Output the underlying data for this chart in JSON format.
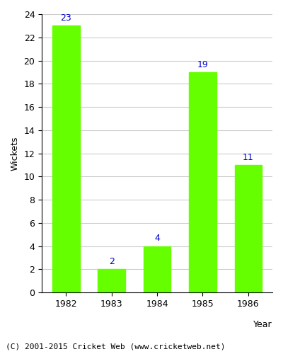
{
  "years": [
    "1982",
    "1983",
    "1984",
    "1985",
    "1986"
  ],
  "values": [
    23,
    2,
    4,
    19,
    11
  ],
  "bar_color": "#66ff00",
  "bar_edge_color": "#66ff00",
  "label_color": "#0000cc",
  "xlabel": "Year",
  "ylabel": "Wickets",
  "ylim": [
    0,
    24
  ],
  "yticks": [
    0,
    2,
    4,
    6,
    8,
    10,
    12,
    14,
    16,
    18,
    20,
    22,
    24
  ],
  "grid_color": "#cccccc",
  "background_color": "#ffffff",
  "footer_text": "(C) 2001-2015 Cricket Web (www.cricketweb.net)",
  "label_fontsize": 9,
  "axis_label_fontsize": 9,
  "tick_fontsize": 9,
  "footer_fontsize": 8
}
